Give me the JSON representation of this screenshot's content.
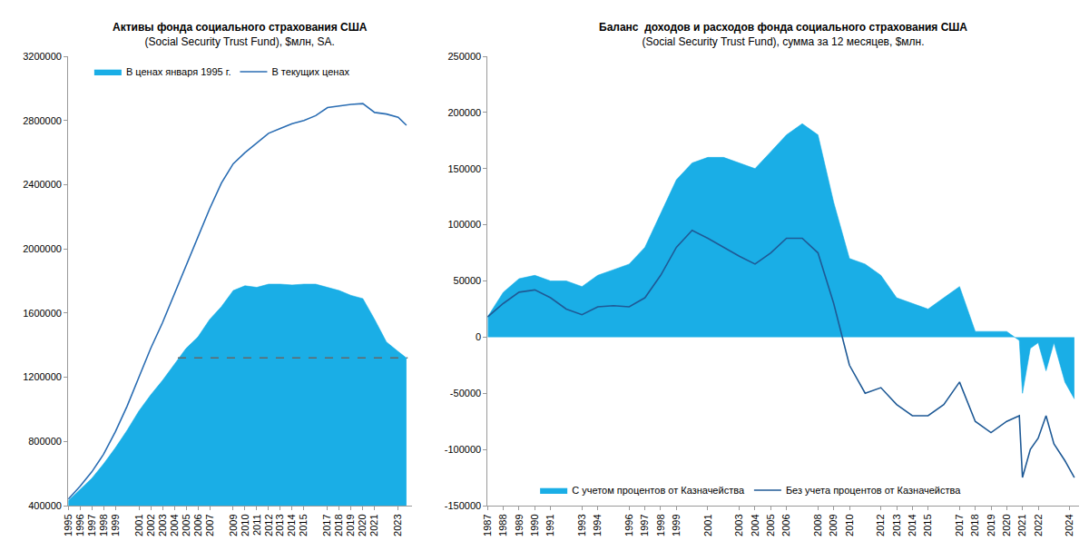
{
  "chart_data": [
    {
      "type": "area",
      "title": "Активы фонда социального страхования США",
      "subtitle": "(Social Security Trust Fund), $млн, SA.",
      "legend": "top left",
      "grid": false,
      "x": [
        1995,
        1996,
        1997,
        1998,
        1999,
        2000,
        2001,
        2002,
        2003,
        2004,
        2005,
        2006,
        2007,
        2008,
        2009,
        2010,
        2011,
        2012,
        2013,
        2014,
        2015,
        2016,
        2017,
        2018,
        2019,
        2020,
        2021,
        2022,
        2023,
        2023.7
      ],
      "series": [
        {
          "name": "В ценах января 1995 г.",
          "type": "area",
          "color": "#1aaee6",
          "values": [
            430000,
            500000,
            570000,
            660000,
            760000,
            870000,
            990000,
            1090000,
            1180000,
            1280000,
            1380000,
            1450000,
            1560000,
            1640000,
            1740000,
            1770000,
            1760000,
            1780000,
            1780000,
            1775000,
            1780000,
            1780000,
            1760000,
            1740000,
            1710000,
            1690000,
            1560000,
            1420000,
            1360000,
            1320000
          ]
        },
        {
          "name": "В текущих ценах",
          "type": "line",
          "color": "#2a6db3",
          "values": [
            440000,
            520000,
            610000,
            720000,
            860000,
            1020000,
            1200000,
            1380000,
            1540000,
            1720000,
            1900000,
            2080000,
            2250000,
            2410000,
            2530000,
            2600000,
            2660000,
            2720000,
            2750000,
            2780000,
            2800000,
            2830000,
            2880000,
            2890000,
            2900000,
            2905000,
            2850000,
            2840000,
            2820000,
            2770000
          ]
        }
      ],
      "reference_line": {
        "value": 1320000,
        "x": [
          2004.3,
          2023.8
        ],
        "color": "#666666",
        "line_style": "dashed"
      },
      "xlim": [
        1995,
        2024.2
      ],
      "xticks": [
        1995,
        1996,
        1997,
        1998,
        1999,
        2001,
        2002,
        2003,
        2004,
        2005,
        2006,
        2007,
        2009,
        2010,
        2011,
        2012,
        2013,
        2014,
        2015,
        2017,
        2018,
        2019,
        2020,
        2021,
        2023
      ],
      "ylim": [
        400000,
        3200000
      ],
      "yticks": [
        400000,
        800000,
        1200000,
        1600000,
        2000000,
        2400000,
        2800000,
        3200000
      ]
    },
    {
      "type": "area",
      "title": "Баланс  доходов и расходов фонда социального страхования США",
      "subtitle": "(Social Security Trust Fund), сумма за 12 месяцев, $млн.",
      "legend": "bottom",
      "grid": false,
      "x": [
        1987,
        1988,
        1989,
        1990,
        1991,
        1992,
        1993,
        1994,
        1995,
        1996,
        1997,
        1998,
        1999,
        2000,
        2001,
        2002,
        2003,
        2004,
        2005,
        2006,
        2007,
        2008,
        2009,
        2010,
        2011,
        2012,
        2013,
        2014,
        2015,
        2016,
        2017,
        2018,
        2019,
        2020,
        2020.8,
        2021,
        2021.5,
        2022,
        2022.5,
        2023,
        2023.7,
        2024.3
      ],
      "series": [
        {
          "name": "С учетом процентов от Казначейства",
          "type": "area",
          "color": "#1aaee6",
          "values": [
            18000,
            40000,
            52000,
            55000,
            50000,
            50000,
            45000,
            55000,
            60000,
            65000,
            80000,
            110000,
            140000,
            155000,
            160000,
            160000,
            155000,
            150000,
            165000,
            180000,
            190000,
            180000,
            120000,
            70000,
            65000,
            55000,
            35000,
            30000,
            25000,
            35000,
            45000,
            5000,
            5000,
            5000,
            -3000,
            -50000,
            -10000,
            -5000,
            -30000,
            -5000,
            -40000,
            -55000
          ]
        },
        {
          "name": "Без учета процентов от Казначейства",
          "type": "line",
          "color": "#1f5a96",
          "values": [
            18000,
            30000,
            40000,
            42000,
            35000,
            25000,
            20000,
            27000,
            28000,
            27000,
            35000,
            55000,
            80000,
            95000,
            88000,
            80000,
            72000,
            65000,
            75000,
            88000,
            88000,
            75000,
            30000,
            -25000,
            -50000,
            -45000,
            -60000,
            -70000,
            -70000,
            -60000,
            -40000,
            -75000,
            -85000,
            -75000,
            -70000,
            -125000,
            -100000,
            -90000,
            -70000,
            -95000,
            -110000,
            -125000
          ]
        }
      ],
      "xlim": [
        1987,
        2024.6
      ],
      "xticks": [
        1987,
        1988,
        1989,
        1990,
        1991,
        1993,
        1994,
        1996,
        1997,
        1998,
        1999,
        2001,
        2003,
        2004,
        2005,
        2006,
        2008,
        2009,
        2010,
        2012,
        2013,
        2014,
        2015,
        2017,
        2018,
        2019,
        2020,
        2021,
        2022,
        2024
      ],
      "ylim": [
        -150000,
        250000
      ],
      "yticks": [
        -150000,
        -100000,
        -50000,
        0,
        50000,
        100000,
        150000,
        200000,
        250000
      ]
    }
  ]
}
